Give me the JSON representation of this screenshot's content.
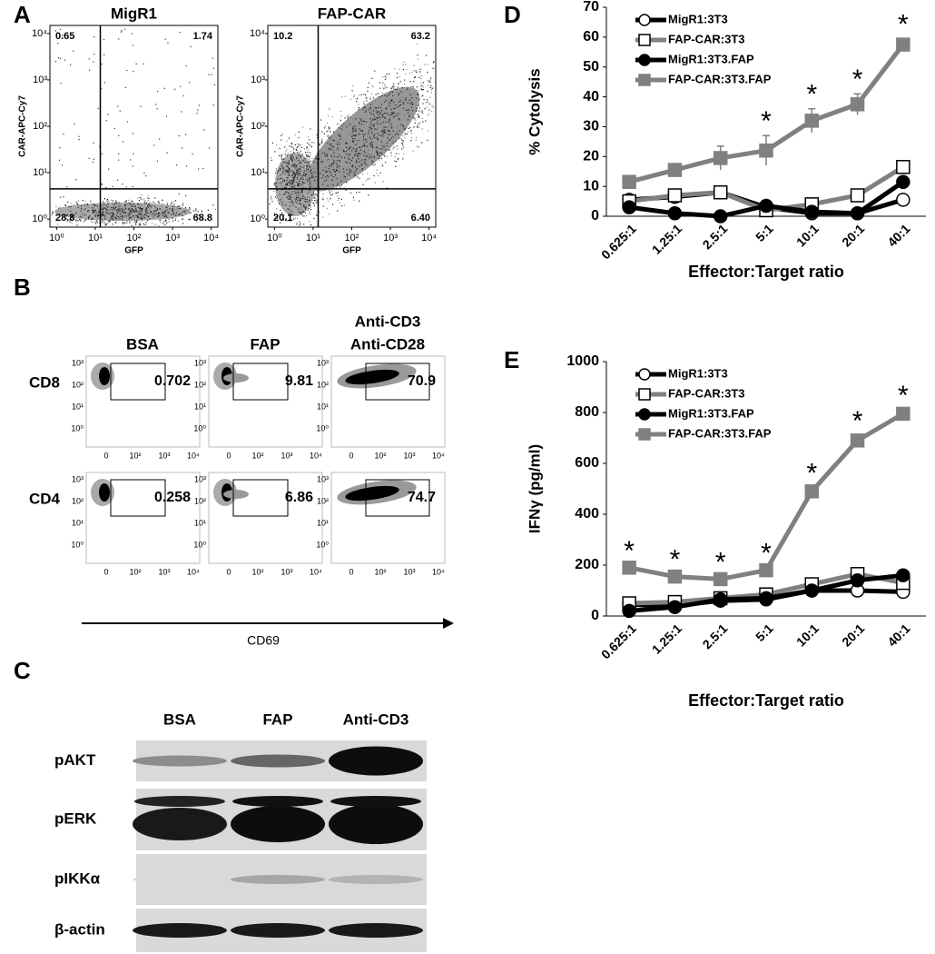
{
  "panel_labels": [
    "A",
    "B",
    "C",
    "D",
    "E"
  ],
  "flow_a": {
    "plots": [
      {
        "title": "MigR1",
        "quadrants": [
          "0.65",
          "1.74",
          "28.8",
          "68.8"
        ]
      },
      {
        "title": "FAP-CAR",
        "quadrants": [
          "10.2",
          "63.2",
          "20.1",
          "6.40"
        ]
      }
    ],
    "y_label": "CAR-APC-Cy7",
    "x_label": "GFP",
    "ticks": [
      "10⁰",
      "10¹",
      "10²",
      "10³",
      "10⁴"
    ]
  },
  "flow_b": {
    "columns": [
      [
        "BSA"
      ],
      [
        "FAP"
      ],
      [
        "Anti-CD3",
        "Anti-CD28"
      ]
    ],
    "rows": [
      "CD8",
      "CD4"
    ],
    "gates": [
      [
        "0.702",
        "9.81",
        "70.9"
      ],
      [
        "0.258",
        "6.86",
        "74.7"
      ]
    ],
    "y_ticks": [
      "10³",
      "10²",
      "10¹",
      "10⁰"
    ],
    "x_ticks": [
      "0",
      "10²",
      "10³",
      "10⁴"
    ],
    "x_label": "CD69"
  },
  "blot": {
    "columns": [
      "BSA",
      "FAP",
      "Anti-CD3"
    ],
    "rows": [
      "pAKT",
      "pERK",
      "pIKKα",
      "β-actin"
    ]
  },
  "chart_data": [
    {
      "type": "line",
      "y_label": "% Cytolysis",
      "x_label": "Effector:Target ratio",
      "categories": [
        "0.625:1",
        "1.25:1",
        "2.5:1",
        "5:1",
        "10:1",
        "20:1",
        "40:1"
      ],
      "ylim": [
        0,
        70
      ],
      "yticks": [
        0,
        10,
        20,
        30,
        40,
        50,
        60,
        70
      ],
      "series": [
        {
          "name": "MigR1:3T3",
          "color": "#000000",
          "marker": "circle",
          "marker_fill": "#ffffff",
          "values": [
            5.5,
            6.5,
            8,
            3,
            1,
            1,
            5.5
          ]
        },
        {
          "name": "FAP-CAR:3T3",
          "color": "#808080",
          "marker": "square",
          "marker_fill": "#ffffff",
          "values": [
            5,
            7,
            8,
            2,
            4,
            7,
            16.5
          ]
        },
        {
          "name": "MigR1:3T3.FAP",
          "color": "#000000",
          "marker": "circle",
          "marker_fill": "#000000",
          "values": [
            3,
            1,
            0,
            3.5,
            1.5,
            1,
            11.5
          ]
        },
        {
          "name": "FAP-CAR:3T3.FAP",
          "color": "#808080",
          "marker": "square",
          "marker_fill": "#808080",
          "values": [
            11.5,
            15.5,
            19.5,
            22,
            32,
            37.5,
            57.5
          ],
          "errors": [
            1.5,
            1.5,
            4,
            5,
            4,
            3.5,
            2
          ],
          "labels": [
            null,
            null,
            null,
            "*",
            "*",
            "*",
            "*"
          ]
        }
      ]
    },
    {
      "type": "line",
      "y_label": "IFNγ (pg/ml)",
      "x_label": "Effector:Target ratio",
      "categories": [
        "0.625:1",
        "1.25:1",
        "2.5:1",
        "5:1",
        "10:1",
        "20:1",
        "40:1"
      ],
      "ylim": [
        0,
        1000
      ],
      "yticks": [
        0,
        200,
        400,
        600,
        800,
        1000
      ],
      "series": [
        {
          "name": "MigR1:3T3",
          "color": "#000000",
          "marker": "circle",
          "marker_fill": "#ffffff",
          "values": [
            45,
            40,
            60,
            65,
            100,
            100,
            95
          ]
        },
        {
          "name": "FAP-CAR:3T3",
          "color": "#808080",
          "marker": "square",
          "marker_fill": "#ffffff",
          "values": [
            50,
            55,
            70,
            85,
            125,
            165,
            130
          ]
        },
        {
          "name": "MigR1:3T3.FAP",
          "color": "#000000",
          "marker": "circle",
          "marker_fill": "#000000",
          "values": [
            20,
            35,
            65,
            70,
            100,
            140,
            160
          ]
        },
        {
          "name": "FAP-CAR:3T3.FAP",
          "color": "#808080",
          "marker": "square",
          "marker_fill": "#808080",
          "values": [
            190,
            155,
            145,
            180,
            490,
            690,
            795
          ],
          "errors": [
            10,
            10,
            10,
            10,
            15,
            20,
            15
          ],
          "labels": [
            "*",
            "*",
            "*",
            "*",
            "*",
            "*",
            "*"
          ]
        }
      ]
    }
  ]
}
